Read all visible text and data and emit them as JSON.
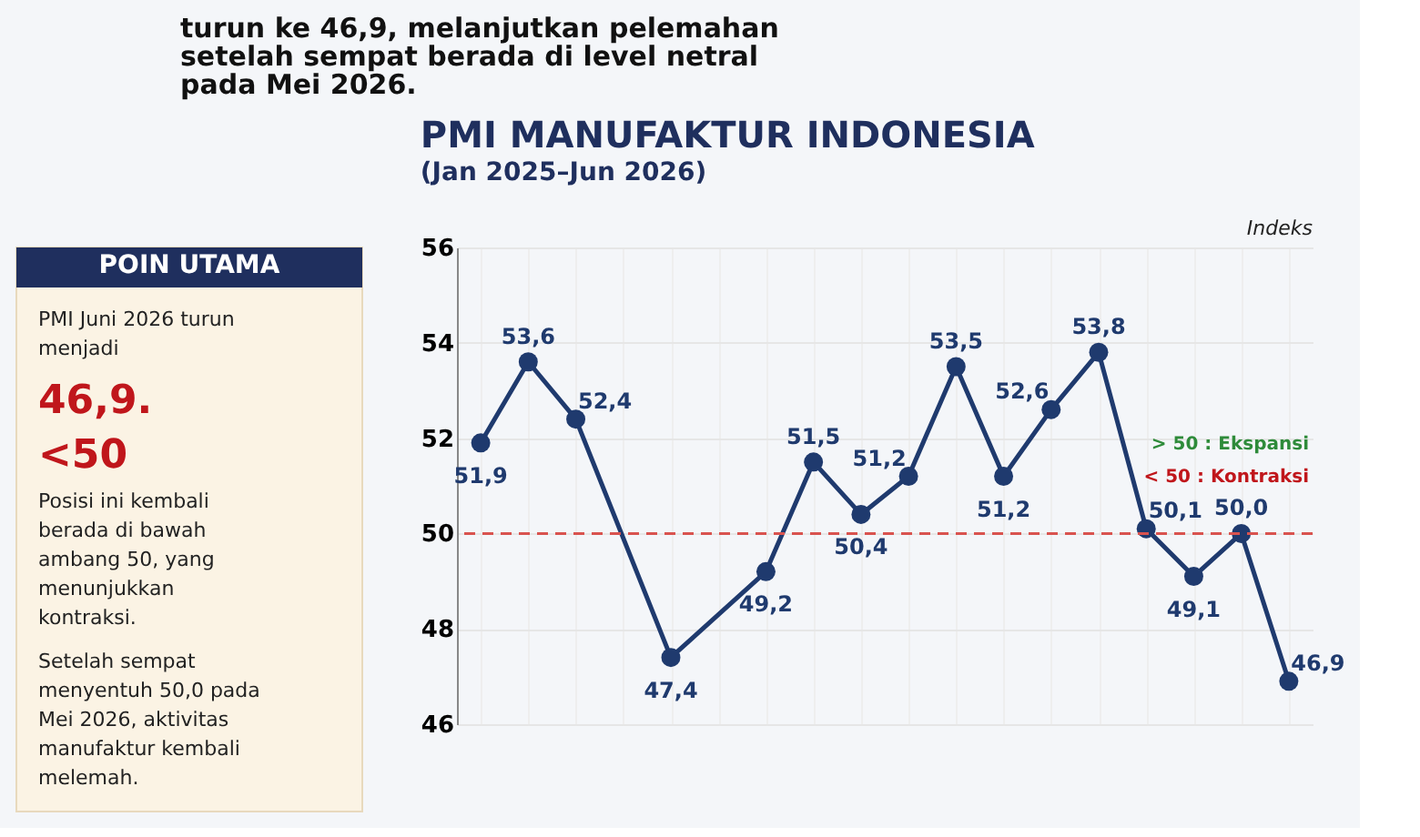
{
  "chart_data": [
    {
      "type": "other",
      "annotations": [
        "turun ke 46,9, melanjutkan pelemahan",
        "setelah sempat berada di level netral",
        "pada Mei 2026."
      ]
    },
    {
      "type": "other",
      "title": "POIN UTAMA",
      "annotations": [
        "PMI Juni 2026 turun menjadi",
        "46,9.",
        "<50",
        "Posisi ini kembali berada di bawah ambang 50, yang menunjukkan kontraksi.",
        "Setelah sempat menyentuh 50,0 pada Mei 2026, aktivitas manufaktur kembali melemah."
      ]
    },
    {
      "type": "line",
      "title": "PMI MANUFAKTUR INDONESIA",
      "subtitle": "(Jan 2025–Jun 2026)",
      "ylabel": "Indeks",
      "categories": [
        null,
        null,
        null,
        null,
        null,
        null,
        null,
        null,
        null,
        null,
        null,
        null,
        null,
        null,
        null,
        null,
        null,
        null
      ],
      "series": [
        {
          "color": "#1f3a6e",
          "values": [
            51.9,
            53.6,
            52.4,
            null,
            47.4,
            null,
            49.2,
            51.5,
            50.4,
            51.2,
            53.5,
            51.2,
            52.6,
            53.8,
            50.1,
            49.1,
            50.0,
            46.9
          ],
          "value_labels": [
            "51,9",
            "53,6",
            "52,4",
            null,
            "47,4",
            null,
            "49,2",
            "51,5",
            "50,4",
            "51,2",
            "53,5",
            "51,2",
            "52,6",
            "53,8",
            "50,1",
            "49,1",
            "50,0",
            "46,9"
          ]
        }
      ],
      "ylim": [
        46,
        56
      ],
      "yticks": [
        46,
        48,
        50,
        52,
        54,
        56
      ],
      "grid": true,
      "marker": "circle",
      "line_style": "solid",
      "ref_lines": [
        {
          "axis": "y",
          "value": 50,
          "color": "#d9534f",
          "line_style": "dashed"
        }
      ],
      "annotations": [
        "> 50 : Ekspansi",
        "< 50 : Kontraksi"
      ]
    }
  ]
}
